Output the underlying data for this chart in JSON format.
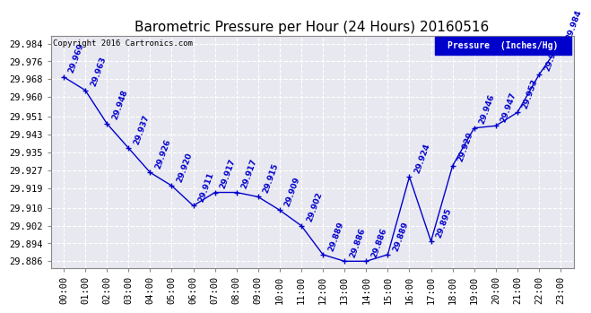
{
  "title": "Barometric Pressure per Hour (24 Hours) 20160516",
  "copyright": "Copyright 2016 Cartronics.com",
  "legend_label": "Pressure  (Inches/Hg)",
  "hours": [
    0,
    1,
    2,
    3,
    4,
    5,
    6,
    7,
    8,
    9,
    10,
    11,
    12,
    13,
    14,
    15,
    16,
    17,
    18,
    19,
    20,
    21,
    22,
    23
  ],
  "pressure": [
    29.969,
    29.963,
    29.948,
    29.937,
    29.926,
    29.92,
    29.911,
    29.917,
    29.917,
    29.915,
    29.909,
    29.902,
    29.889,
    29.886,
    29.886,
    29.889,
    29.924,
    29.895,
    29.929,
    29.946,
    29.947,
    29.953,
    29.97,
    29.984
  ],
  "ylim_min": 29.883,
  "ylim_max": 29.9875,
  "yticks": [
    29.886,
    29.894,
    29.902,
    29.91,
    29.919,
    29.927,
    29.935,
    29.943,
    29.951,
    29.96,
    29.968,
    29.976,
    29.984
  ],
  "line_color": "#0000cc",
  "marker_color": "#0000cc",
  "bg_color": "#ffffff",
  "plot_bg_color": "#e8e8f0",
  "grid_color": "#ffffff",
  "title_fontsize": 11,
  "label_fontsize": 6.5,
  "tick_fontsize": 7.5,
  "copyright_fontsize": 6.5,
  "legend_bg": "#0000cc",
  "legend_fg": "#ffffff"
}
